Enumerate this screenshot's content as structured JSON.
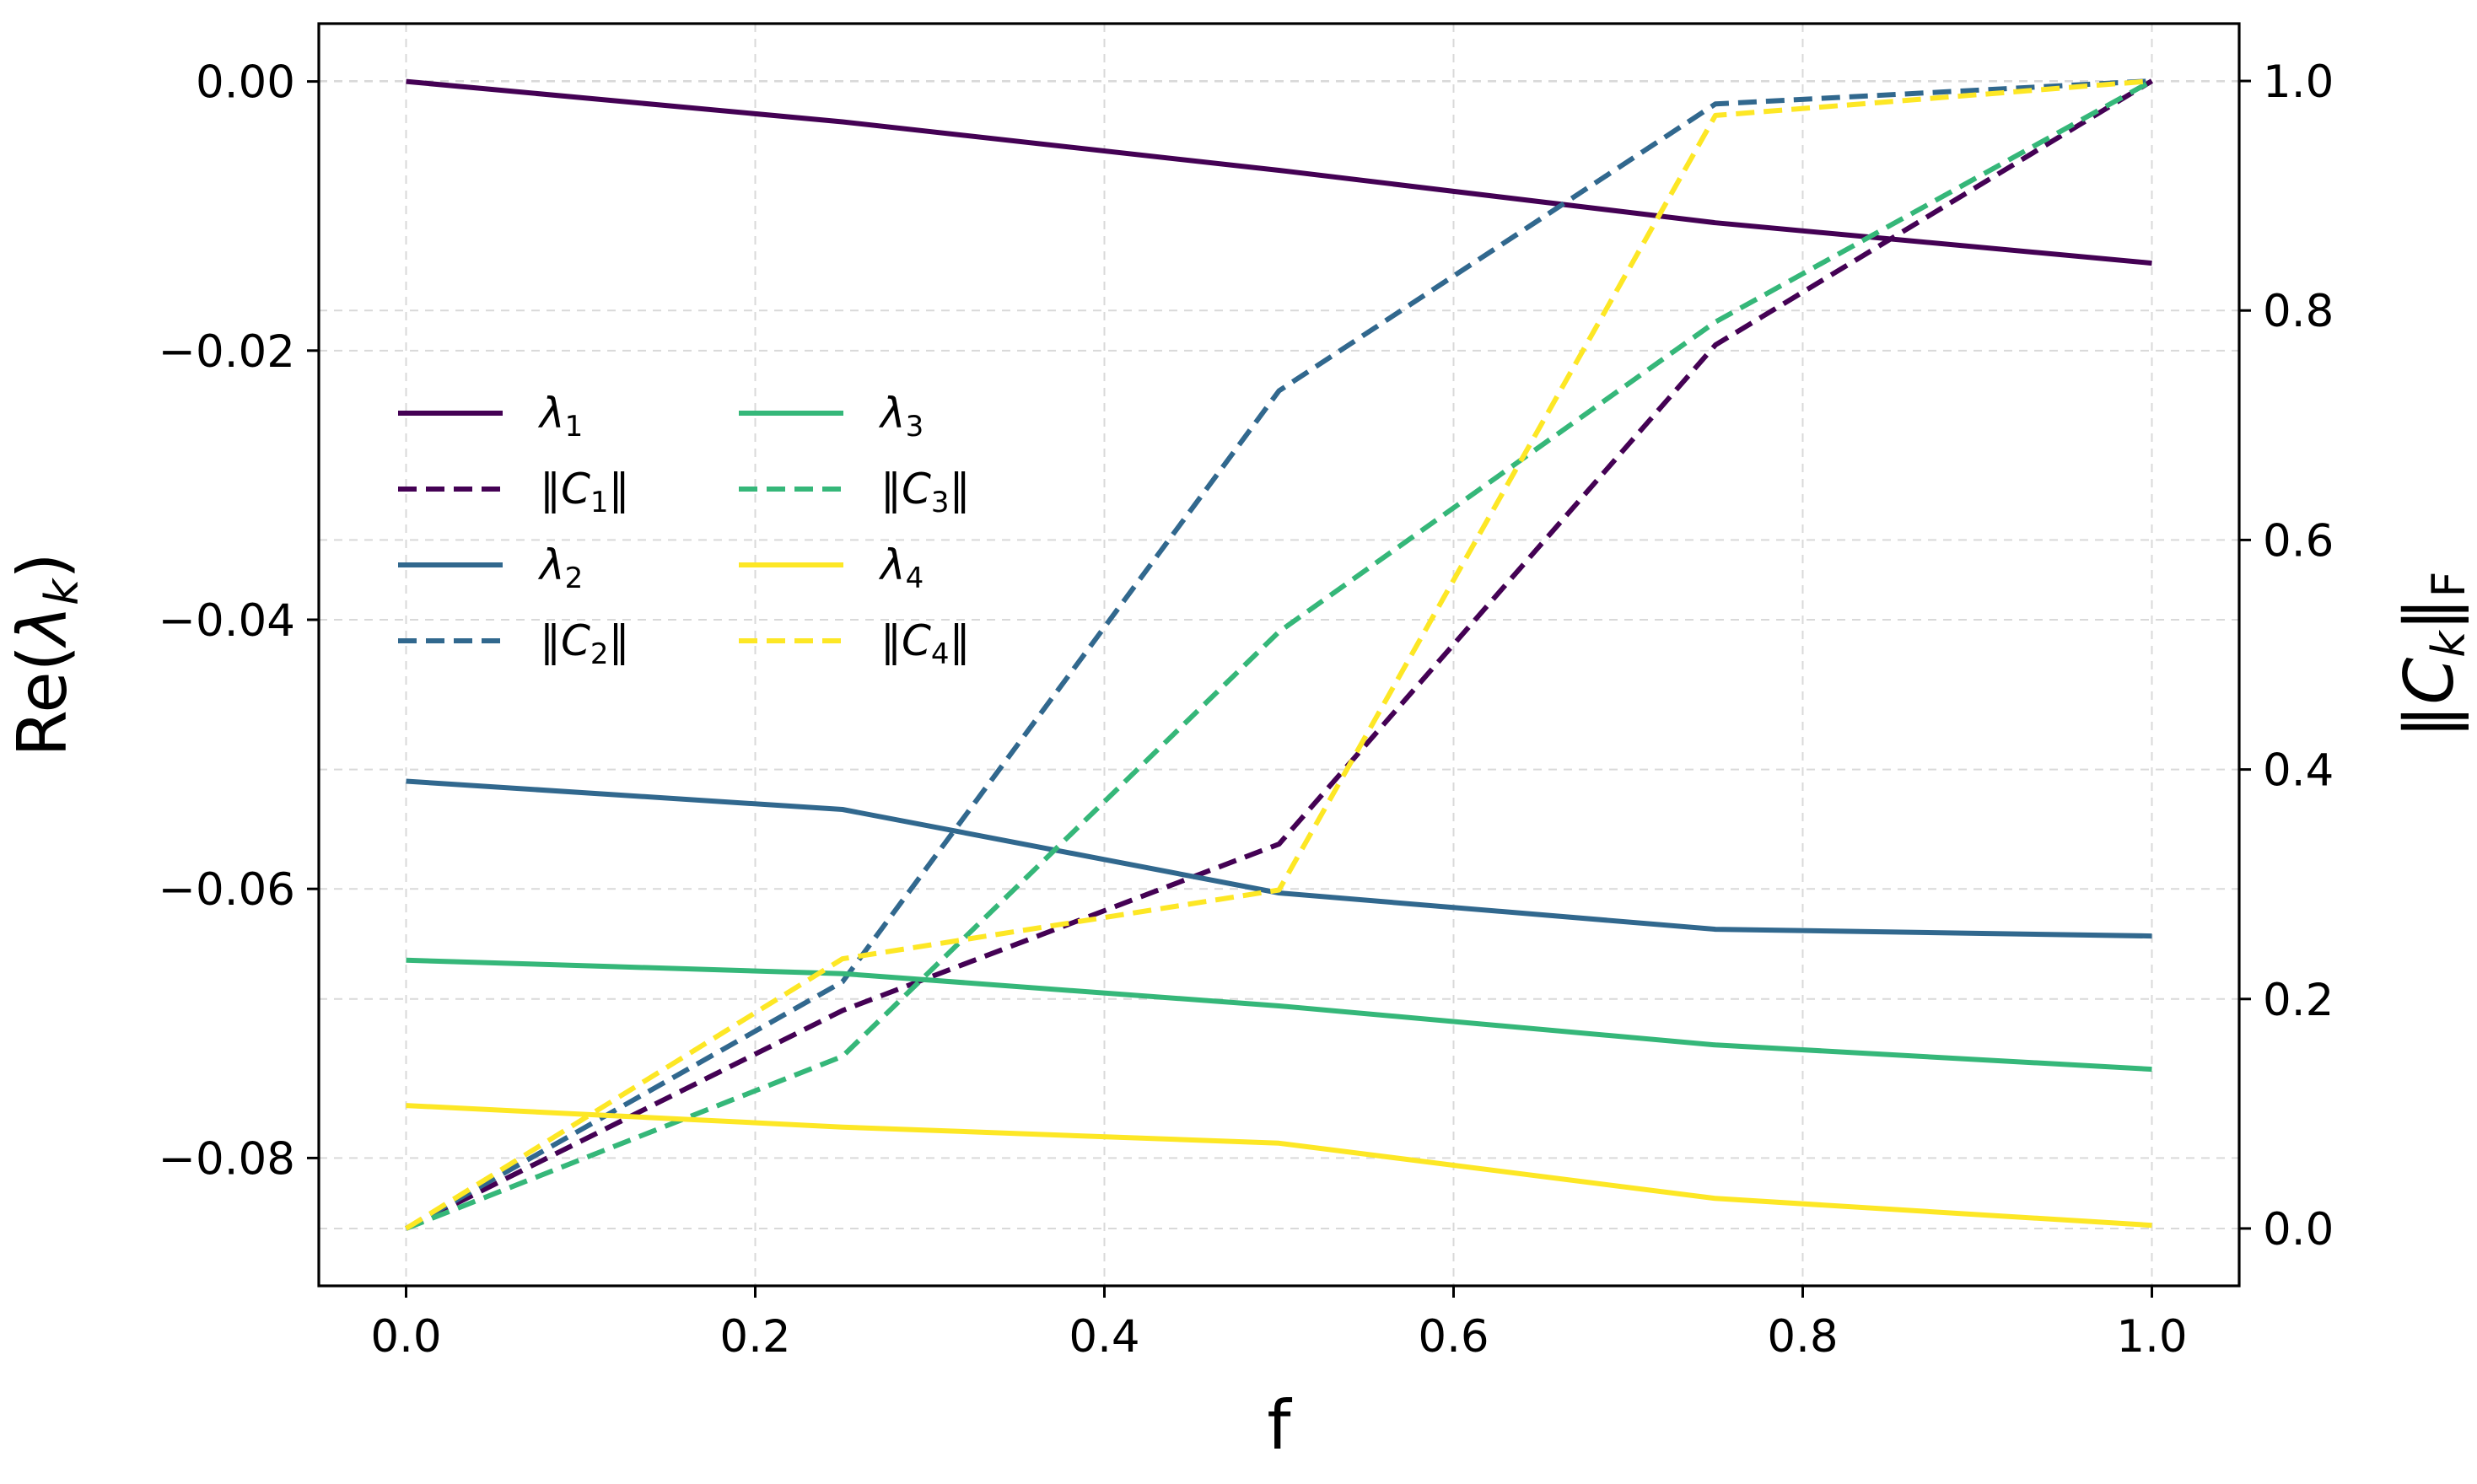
{
  "chart_data": {
    "type": "line",
    "x": [
      0.0,
      0.25,
      0.5,
      0.75,
      1.0
    ],
    "xlabel": "f",
    "xlim": [
      -0.05,
      1.05
    ],
    "xticks": [
      "0.0",
      "0.2",
      "0.4",
      "0.6",
      "0.8",
      "1.0"
    ],
    "xtick_values": [
      0.0,
      0.2,
      0.4,
      0.6,
      0.8,
      1.0
    ],
    "left_axis": {
      "label": "Re(λk)",
      "label_main": "Re(",
      "label_symbol": "λ",
      "label_sub": "k",
      "label_close": ")",
      "ylim": [
        -0.0895,
        0.0043
      ],
      "ticks": [
        "0.00",
        "−0.02",
        "−0.04",
        "−0.06",
        "−0.08"
      ],
      "tick_values": [
        0.0,
        -0.02,
        -0.04,
        -0.06,
        -0.08
      ]
    },
    "right_axis": {
      "label": "‖Ck‖F",
      "label_open": "‖",
      "label_symbol": "C",
      "label_sub": "k",
      "label_close": "‖",
      "label_subF": "F",
      "ylim": [
        -0.05,
        1.05
      ],
      "ticks": [
        "0.0",
        "0.2",
        "0.4",
        "0.6",
        "0.8",
        "1.0"
      ],
      "tick_values": [
        0.0,
        0.2,
        0.4,
        0.6,
        0.8,
        1.0
      ]
    },
    "grid": true,
    "legend_location": "upper-left",
    "series": [
      {
        "name": "λ1",
        "axis": "left",
        "style": "solid",
        "color": "#440154",
        "values": [
          0.0,
          -0.003,
          -0.0066,
          -0.0105,
          -0.0135
        ]
      },
      {
        "name": "‖C1‖",
        "axis": "right",
        "style": "dashed",
        "color": "#440154",
        "values": [
          0.0,
          0.19,
          0.335,
          0.77,
          1.0
        ]
      },
      {
        "name": "λ2",
        "axis": "left",
        "style": "solid",
        "color": "#31688e",
        "values": [
          -0.052,
          -0.0541,
          -0.0603,
          -0.063,
          -0.0635
        ]
      },
      {
        "name": "‖C2‖",
        "axis": "right",
        "style": "dashed",
        "color": "#31688e",
        "values": [
          0.0,
          0.215,
          0.73,
          0.98,
          1.0
        ]
      },
      {
        "name": "λ3",
        "axis": "left",
        "style": "solid",
        "color": "#35b779",
        "values": [
          -0.0653,
          -0.0663,
          -0.0687,
          -0.0716,
          -0.0734
        ]
      },
      {
        "name": "‖C3‖",
        "axis": "right",
        "style": "dashed",
        "color": "#35b779",
        "values": [
          0.0,
          0.15,
          0.52,
          0.79,
          1.0
        ]
      },
      {
        "name": "λ4",
        "axis": "left",
        "style": "solid",
        "color": "#fde725",
        "values": [
          -0.0761,
          -0.0777,
          -0.0789,
          -0.083,
          -0.085
        ]
      },
      {
        "name": "‖C4‖",
        "axis": "right",
        "style": "dashed",
        "color": "#fde725",
        "values": [
          0.0,
          0.235,
          0.295,
          0.97,
          1.0
        ]
      }
    ],
    "legend": [
      {
        "symbol": "λ",
        "sub": "1",
        "wrap": false
      },
      {
        "symbol": "C",
        "sub": "1",
        "wrap": true
      },
      {
        "symbol": "λ",
        "sub": "2",
        "wrap": false
      },
      {
        "symbol": "C",
        "sub": "2",
        "wrap": true
      },
      {
        "symbol": "λ",
        "sub": "3",
        "wrap": false
      },
      {
        "symbol": "C",
        "sub": "3",
        "wrap": true
      },
      {
        "symbol": "λ",
        "sub": "4",
        "wrap": false
      },
      {
        "symbol": "C",
        "sub": "4",
        "wrap": true
      }
    ]
  }
}
